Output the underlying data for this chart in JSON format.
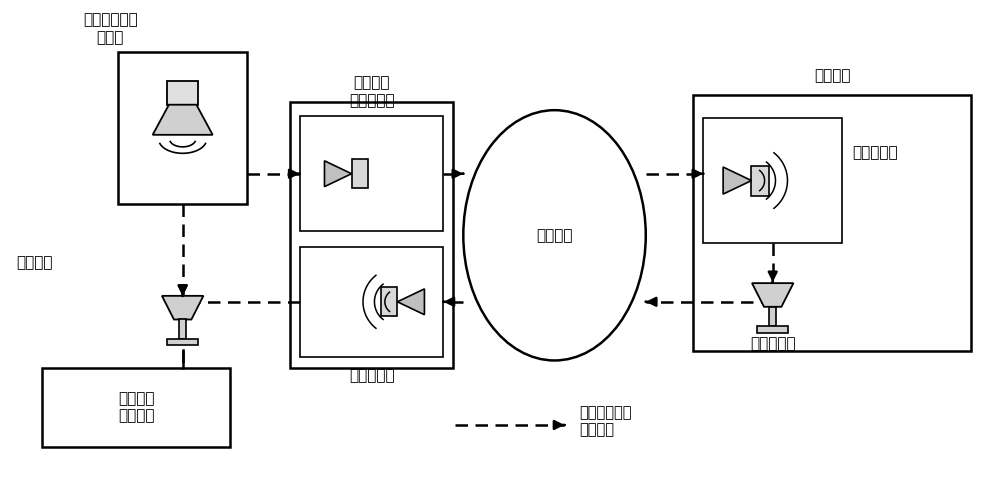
{
  "bg_color": "#ffffff",
  "box_color": "#ffffff",
  "box_edge": "#000000",
  "line_color": "#000000",
  "font_color": "#000000",
  "font_size": 11,
  "labels": {
    "audio_gen": "音频测试信号\n发生器",
    "measure": "测量装置",
    "local_terminal": "本地终端",
    "local_mic": "本地麦克风",
    "local_speaker": "本地扬声器",
    "network": "传输网络",
    "remote_terminal": "远端终端",
    "remote_speaker": "远端扬声器",
    "remote_mic": "远端麦克风",
    "signal_proc": "信号处理\n结果输出",
    "legend_signal": "音频测试信号\n传输方向"
  }
}
